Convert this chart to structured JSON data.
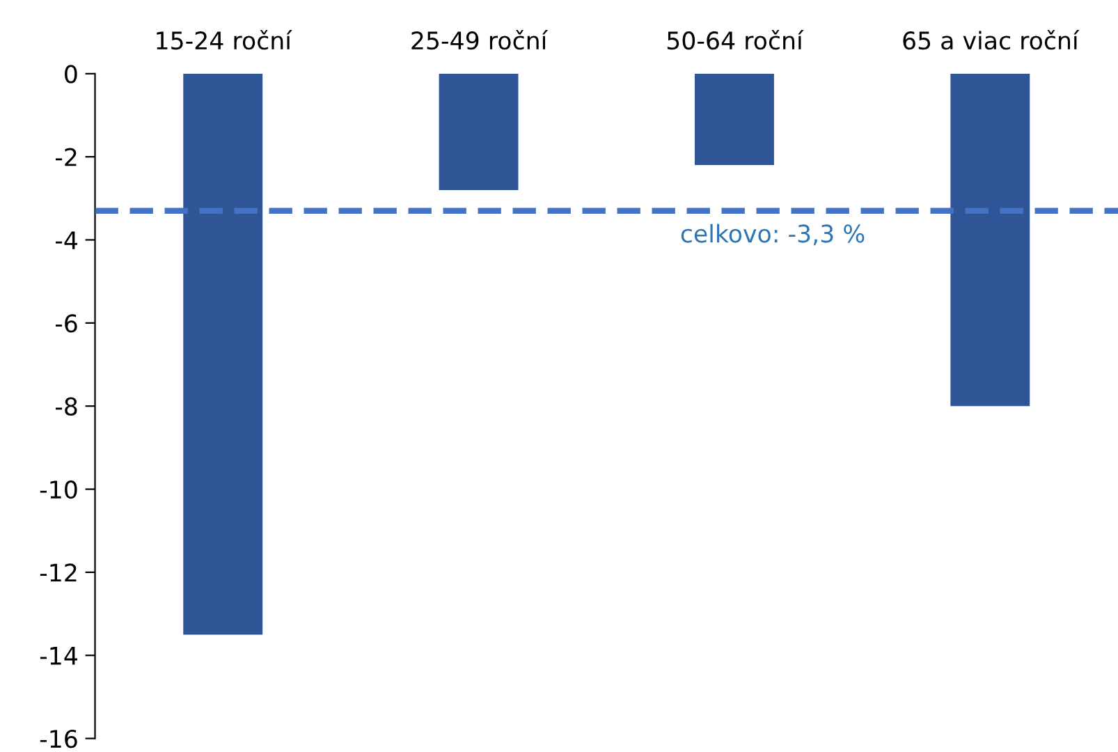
{
  "chart_data": {
    "type": "bar",
    "categories": [
      "15-24 roční",
      "25-49 roční",
      "50-64 roční",
      "65 a viac roční"
    ],
    "series": [
      {
        "color": "#2f5597",
        "values": [
          -13.5,
          -2.8,
          -2.2,
          -8.0
        ]
      }
    ],
    "ylim": [
      -16,
      0
    ],
    "yticks": [
      -16,
      -14,
      -12,
      -10,
      -8,
      -6,
      -4,
      -2,
      0
    ],
    "ref_lines": [
      {
        "axis": "y",
        "value": -3.3,
        "label": "celkovo: -3,3 %",
        "color": "#4472c4",
        "line_style": "dashed"
      }
    ],
    "grid": false,
    "legend": false
  }
}
